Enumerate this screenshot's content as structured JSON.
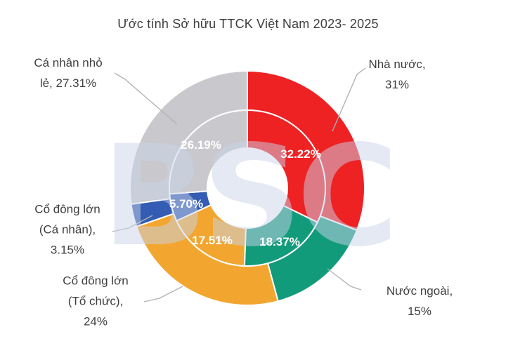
{
  "title": "Ước tính Sở hữu TTCK Việt Nam 2023- 2025",
  "watermark": {
    "text": "BSC"
  },
  "chart_data": {
    "type": "pie",
    "subtype": "doughnut-two-rings",
    "title": "Ước tính Sở hữu TTCK Việt Nam 2023- 2025",
    "legend": "none",
    "grid": false,
    "categories": [
      "Nhà nước",
      "Nước ngoài",
      "Cổ đông lớn (Tổ chức)",
      "Cổ đông lớn (Cá nhân)",
      "Cá nhân nhỏ lẻ"
    ],
    "slice_colors": [
      "#ee2123",
      "#129b7b",
      "#f2a62f",
      "#335cb2",
      "#c9c8cc"
    ],
    "separator_color": "#ffffff",
    "leader_line_color": "#b3b3b3",
    "series": [
      {
        "name": "outer-ring",
        "values": [
          31,
          15,
          24,
          3.15,
          27.31
        ],
        "labels_display": [
          "31%",
          "15%",
          "24%",
          "3.15%",
          "27.31%"
        ],
        "label_style": "callout-outside"
      },
      {
        "name": "inner-ring",
        "values": [
          32.22,
          18.37,
          17.51,
          5.7,
          26.19
        ],
        "labels_display": [
          "32.22%",
          "18.37%",
          "17.51%",
          "5.70%",
          "26.19%"
        ],
        "label_style": "white-on-slice"
      }
    ],
    "callouts": [
      {
        "category": "Nhà nước",
        "lines": [
          "Nhà nước,",
          "31%"
        ]
      },
      {
        "category": "Nước ngoài",
        "lines": [
          "Nước ngoài,",
          "15%"
        ]
      },
      {
        "category": "Cổ đông lớn (Tổ chức)",
        "lines": [
          "Cổ đông lớn",
          "(Tổ chức),",
          "24%"
        ]
      },
      {
        "category": "Cổ đông lớn (Cá nhân)",
        "lines": [
          "Cổ đông lớn",
          "(Cá nhân),",
          "3.15%"
        ]
      },
      {
        "category": "Cá nhân nhỏ lẻ",
        "lines": [
          "Cá nhân nhỏ",
          "lẻ, 27.31%"
        ]
      }
    ]
  }
}
